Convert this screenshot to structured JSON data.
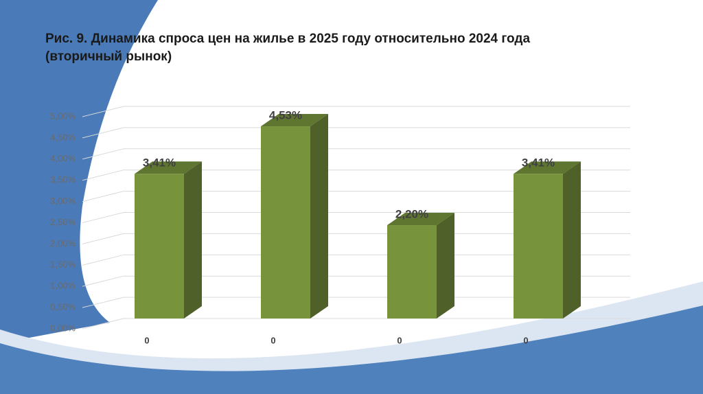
{
  "chart_data": {
    "type": "bar3d",
    "title": "Рис. 9. Динамика спроса цен на жилье в 2025 году относительно 2024 года (вторичный рынок)",
    "categories": [
      "0",
      "0",
      "0",
      "0"
    ],
    "values": [
      3.41,
      4.53,
      2.2,
      3.41
    ],
    "value_labels": [
      "3,41%",
      "4,53%",
      "2,20%",
      "3,41%"
    ],
    "color": "#77933c",
    "ylim": [
      0,
      5
    ],
    "yticks": [
      {
        "value": 0,
        "label": "0,00%"
      },
      {
        "value": 0.5,
        "label": "0,50%"
      },
      {
        "value": 1,
        "label": "1,00%"
      },
      {
        "value": 1.5,
        "label": "1,50%"
      },
      {
        "value": 2,
        "label": "2,00%"
      },
      {
        "value": 2.5,
        "label": "2,50%"
      },
      {
        "value": 3,
        "label": "3,00%"
      },
      {
        "value": 3.5,
        "label": "3,50%"
      },
      {
        "value": 4,
        "label": "4,00%"
      },
      {
        "value": 4.5,
        "label": "4,50%"
      },
      {
        "value": 5,
        "label": "5,00%"
      }
    ],
    "grid": true
  }
}
